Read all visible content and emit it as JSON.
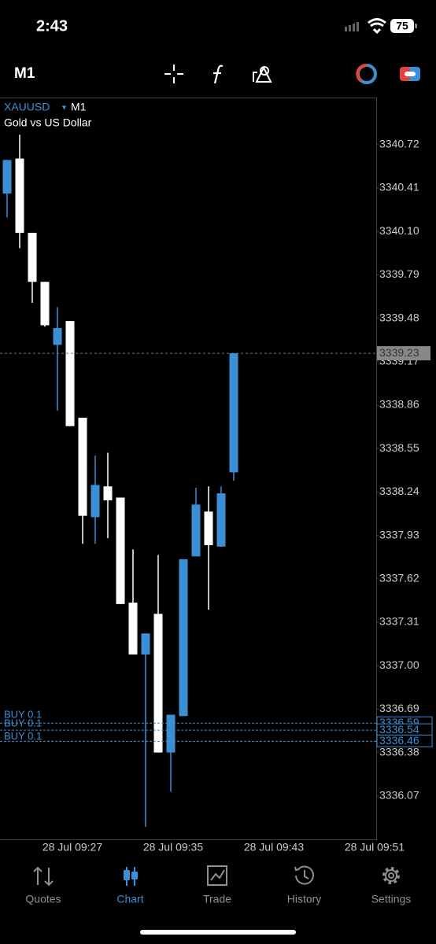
{
  "status_bar": {
    "time": "2:43",
    "battery": "75"
  },
  "toolbar": {
    "timeframe": "M1"
  },
  "chart_data": {
    "type": "candlestick",
    "symbol": "XAUUSD",
    "timeframe": "M1",
    "description": "Gold vs US Dollar",
    "categories": [
      null,
      null,
      null,
      null,
      null,
      "28 Jul 09:27",
      null,
      null,
      null,
      null,
      null,
      null,
      null,
      "28 Jul 09:35",
      null,
      null,
      null,
      null,
      null,
      null,
      null,
      "28 Jul 09:43",
      null,
      null,
      null,
      null,
      null,
      null,
      null,
      "28 Jul 09:51"
    ],
    "open": [
      3340.37,
      3340.62,
      3340.09,
      3339.74,
      3339.29,
      3339.46,
      3338.77,
      3338.06,
      3338.28,
      3338.2,
      3337.45,
      3337.08,
      3337.37,
      3336.38,
      3336.64,
      3337.78,
      3338.1,
      3337.85,
      3338.38,
      null,
      null,
      null,
      null,
      null,
      null,
      null,
      null,
      null,
      null,
      null
    ],
    "high": [
      3340.61,
      3340.79,
      3340.09,
      3339.74,
      3339.56,
      3339.46,
      3338.77,
      3338.5,
      3338.52,
      3338.2,
      3337.83,
      3337.23,
      3337.79,
      3336.65,
      3337.76,
      3338.27,
      3338.28,
      3338.28,
      3339.23,
      null,
      null,
      null,
      null,
      null,
      null,
      null,
      null,
      null,
      null,
      null
    ],
    "low": [
      3340.2,
      3339.98,
      3339.59,
      3339.42,
      3338.82,
      3338.71,
      3337.87,
      3337.87,
      3337.91,
      3337.44,
      3337.08,
      3335.85,
      3336.38,
      3336.1,
      3336.64,
      3337.78,
      3337.4,
      3337.85,
      3338.32,
      null,
      null,
      null,
      null,
      null,
      null,
      null,
      null,
      null,
      null,
      null
    ],
    "close": [
      3340.61,
      3340.09,
      3339.74,
      3339.43,
      3339.41,
      3338.71,
      3338.07,
      3338.29,
      3338.18,
      3337.44,
      3337.08,
      3337.23,
      3336.38,
      3336.65,
      3337.76,
      3338.15,
      3337.86,
      3338.23,
      3339.23,
      null,
      null,
      null,
      null,
      null,
      null,
      null,
      null,
      null,
      null,
      null
    ],
    "up_color": "#3b8fd4",
    "down_color": "#ffffff",
    "ylim": [
      3335.76,
      3341.05
    ],
    "yticks": [
      3340.72,
      3340.41,
      {
        "value": 3340.1,
        "label": "3340.10"
      },
      3339.79,
      3339.48,
      3339.17,
      3338.86,
      3338.55,
      3338.24,
      3337.93,
      3337.62,
      3337.31,
      {
        "value": 3337,
        "label": "3337.00"
      },
      3336.69,
      3336.38,
      3336.07
    ],
    "current_price": 3339.23,
    "orders": [
      {
        "label": "BUY 0.1",
        "price": 3336.59
      },
      {
        "label": "BUY 0.1",
        "price": 3336.54
      },
      {
        "label": "BUY 0.1",
        "price": 3336.46
      }
    ]
  },
  "tab_bar": {
    "tabs": [
      "Quotes",
      "Chart",
      "Trade",
      "History",
      "Settings"
    ],
    "active": 1
  }
}
